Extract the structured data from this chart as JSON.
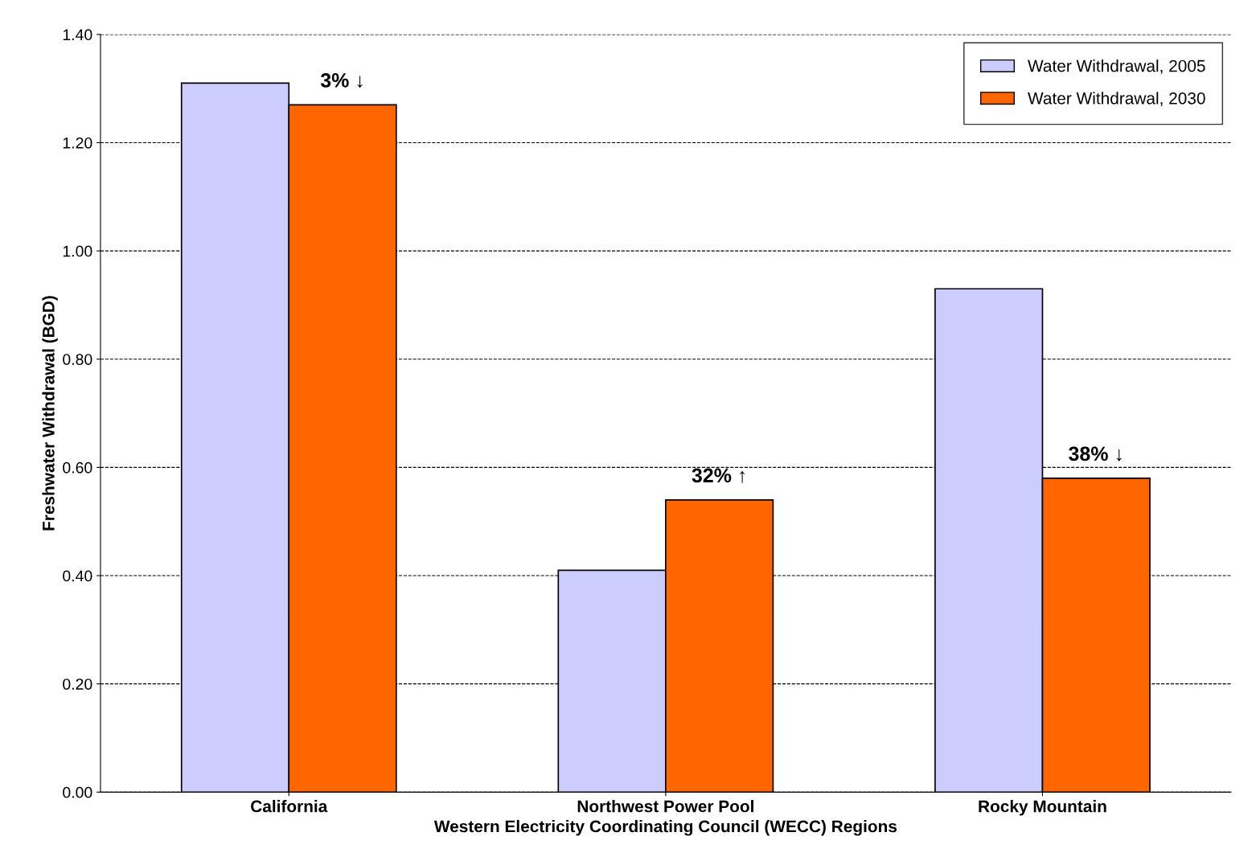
{
  "chart_data": {
    "type": "bar",
    "xlabel": "Western Electricity Coordinating Council (WECC) Regions",
    "ylabel": "Freshwater Withdrawal (BGD)",
    "categories": [
      "California",
      "Northwest Power Pool",
      "Rocky Mountain"
    ],
    "series": [
      {
        "name": "Water Withdrawal, 2005",
        "color": "#ccccff",
        "values": [
          1.31,
          0.41,
          0.93
        ]
      },
      {
        "name": "Water Withdrawal, 2030",
        "color": "#ff6600",
        "values": [
          1.27,
          0.54,
          0.58
        ]
      }
    ],
    "ylim": [
      0,
      1.4
    ],
    "yticks": [
      {
        "value": 0,
        "label": "0.00"
      },
      {
        "value": 0.2,
        "label": "0.20"
      },
      {
        "value": 0.4,
        "label": "0.40"
      },
      {
        "value": 0.6,
        "label": "0.60"
      },
      {
        "value": 0.8,
        "label": "0.80"
      },
      {
        "value": 1.0,
        "label": "1.00"
      },
      {
        "value": 1.2,
        "label": "1.20"
      },
      {
        "value": 1.4,
        "label": "1.40"
      }
    ],
    "grid": "y",
    "legend": "top right",
    "annotations": [
      {
        "text": "3% ↓",
        "x": "California",
        "y": 1.27
      },
      {
        "text": "32% ↑",
        "x": "Northwest Power Pool",
        "y": 0.54
      },
      {
        "text": "38% ↓",
        "x": "Rocky Mountain",
        "y": 0.58
      }
    ]
  }
}
